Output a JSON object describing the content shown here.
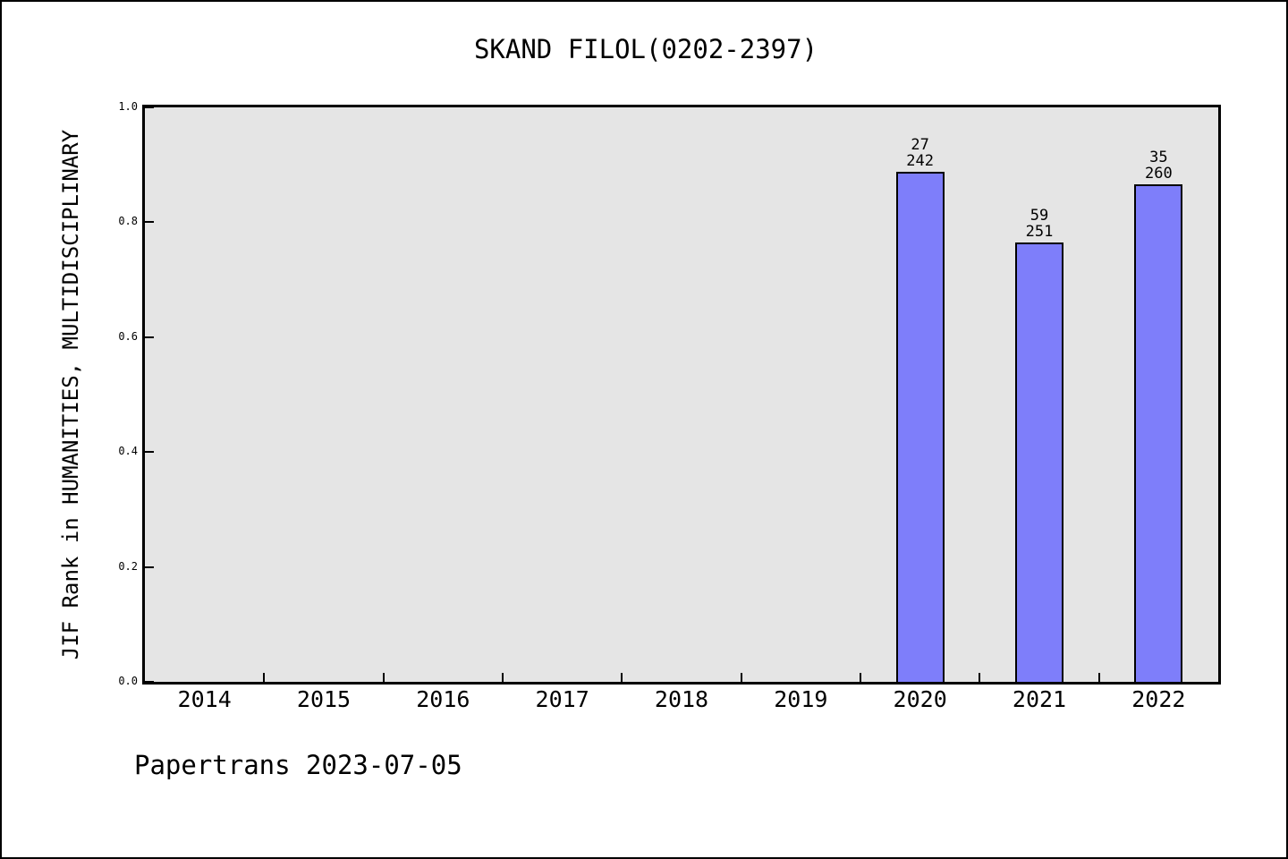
{
  "page": {
    "footer": "Papertrans 2023-07-05"
  },
  "chart_data": {
    "type": "bar",
    "title": "SKAND FILOL(0202-2397)",
    "xlabel": "",
    "ylabel": "JIF Rank in HUMANITIES, MULTIDISCIPLINARY",
    "categories": [
      "2014",
      "2015",
      "2016",
      "2017",
      "2018",
      "2019",
      "2020",
      "2021",
      "2022"
    ],
    "values": [
      null,
      null,
      null,
      null,
      null,
      null,
      0.8884,
      0.7649,
      0.8654
    ],
    "bars": [
      {
        "category": "2020",
        "rank": "27",
        "total": "242",
        "value": 0.8884
      },
      {
        "category": "2021",
        "rank": "59",
        "total": "251",
        "value": 0.7649
      },
      {
        "category": "2022",
        "rank": "35",
        "total": "260",
        "value": 0.8654
      }
    ],
    "ylim": [
      0.0,
      1.0
    ],
    "ytick_labels": [
      "0.0",
      "0.2",
      "0.4",
      "0.6",
      "0.8",
      "1.0"
    ],
    "grid": false,
    "legend_position": "none",
    "bar_color": "#7e7efa",
    "bar_edge_color": "#000000",
    "plot_bg_color": "#e5e5e5",
    "page_bg_color": "#ffffff"
  }
}
